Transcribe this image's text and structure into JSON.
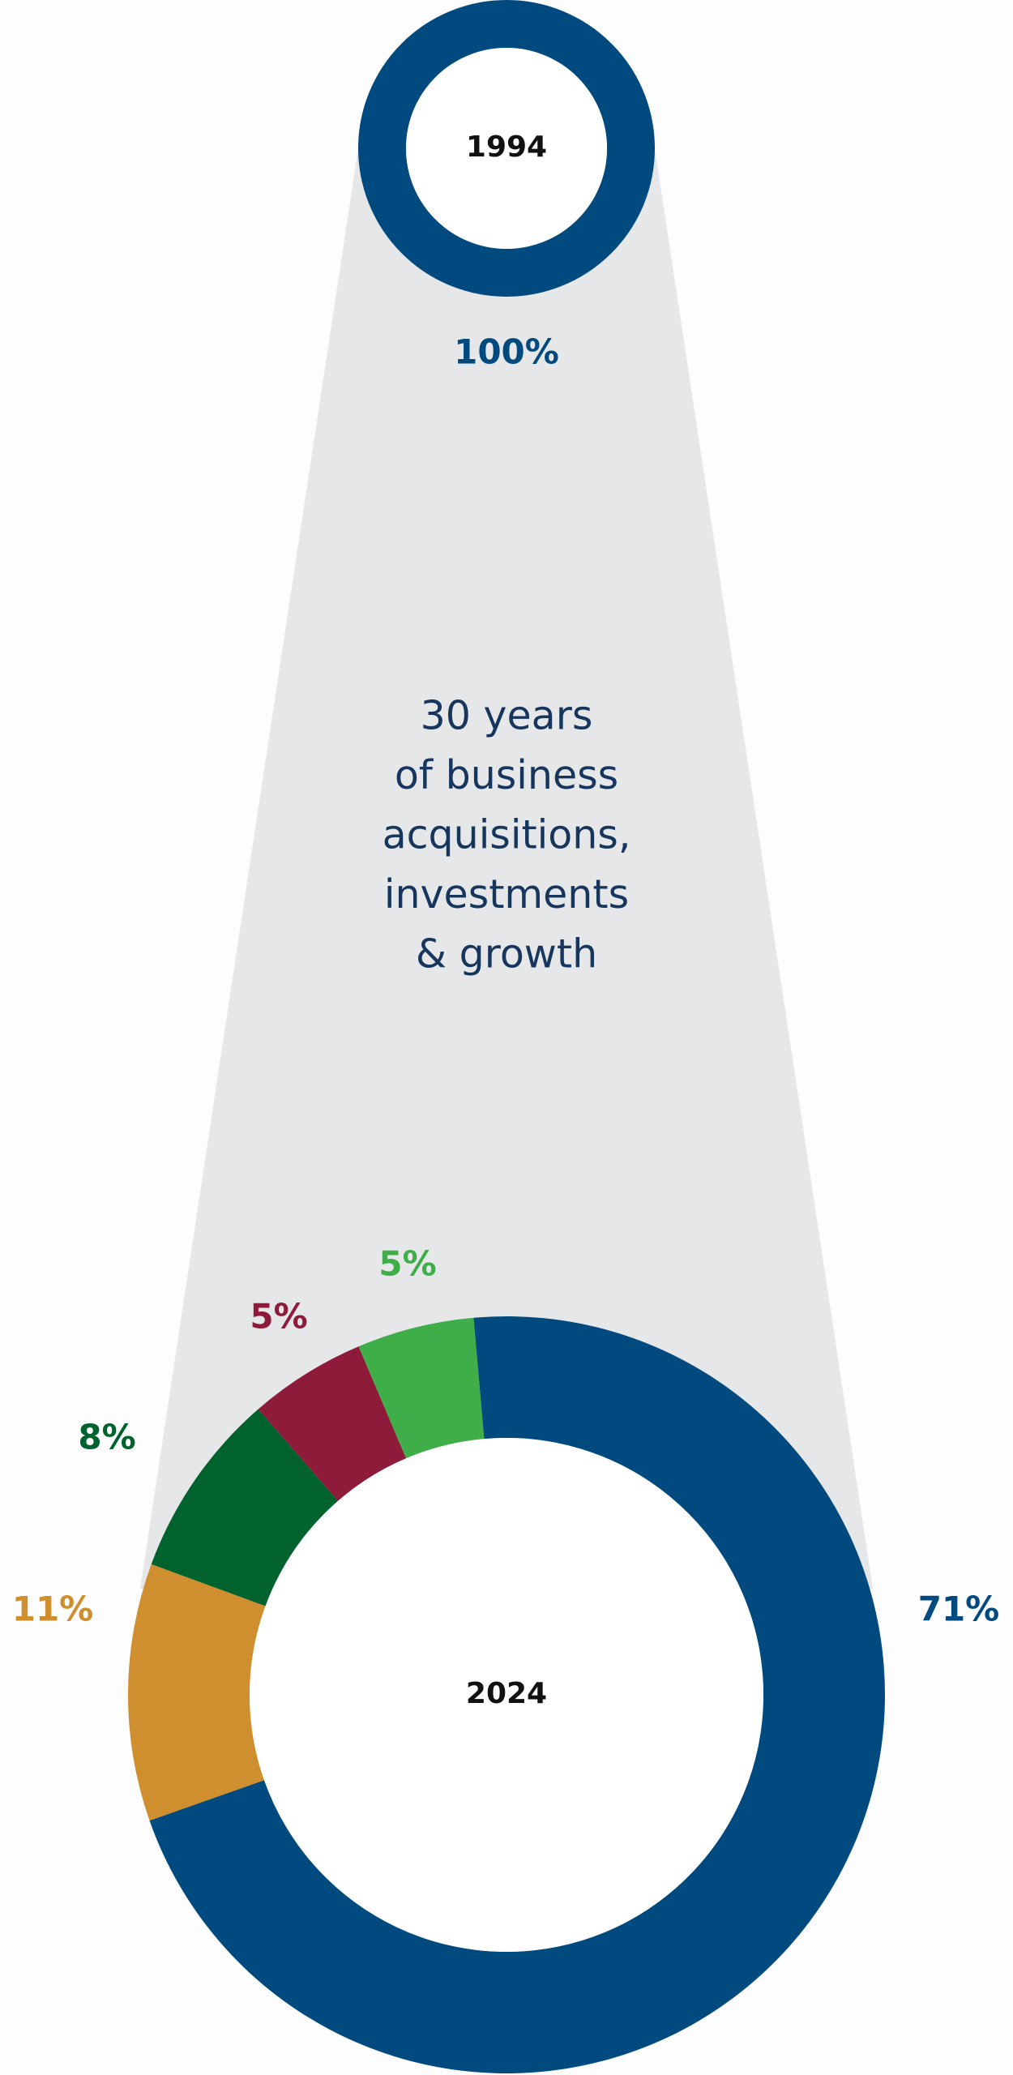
{
  "chart_data": [
    {
      "type": "donut",
      "center_label": "1994",
      "values": [
        100
      ],
      "value_labels": [
        "100%"
      ],
      "colors": [
        "#004a80"
      ]
    },
    {
      "type": "donut",
      "center_label": "2024",
      "values": [
        71,
        11,
        8,
        5,
        5
      ],
      "value_labels": [
        "71%",
        "11%",
        "8%",
        "5%",
        "5%"
      ],
      "colors": [
        "#004a80",
        "#cf8f2e",
        "#00622c",
        "#8e1b3a",
        "#3fae49"
      ]
    }
  ],
  "caption": [
    "30 years",
    "of business",
    "acquisitions,",
    "investments",
    "& growth"
  ]
}
